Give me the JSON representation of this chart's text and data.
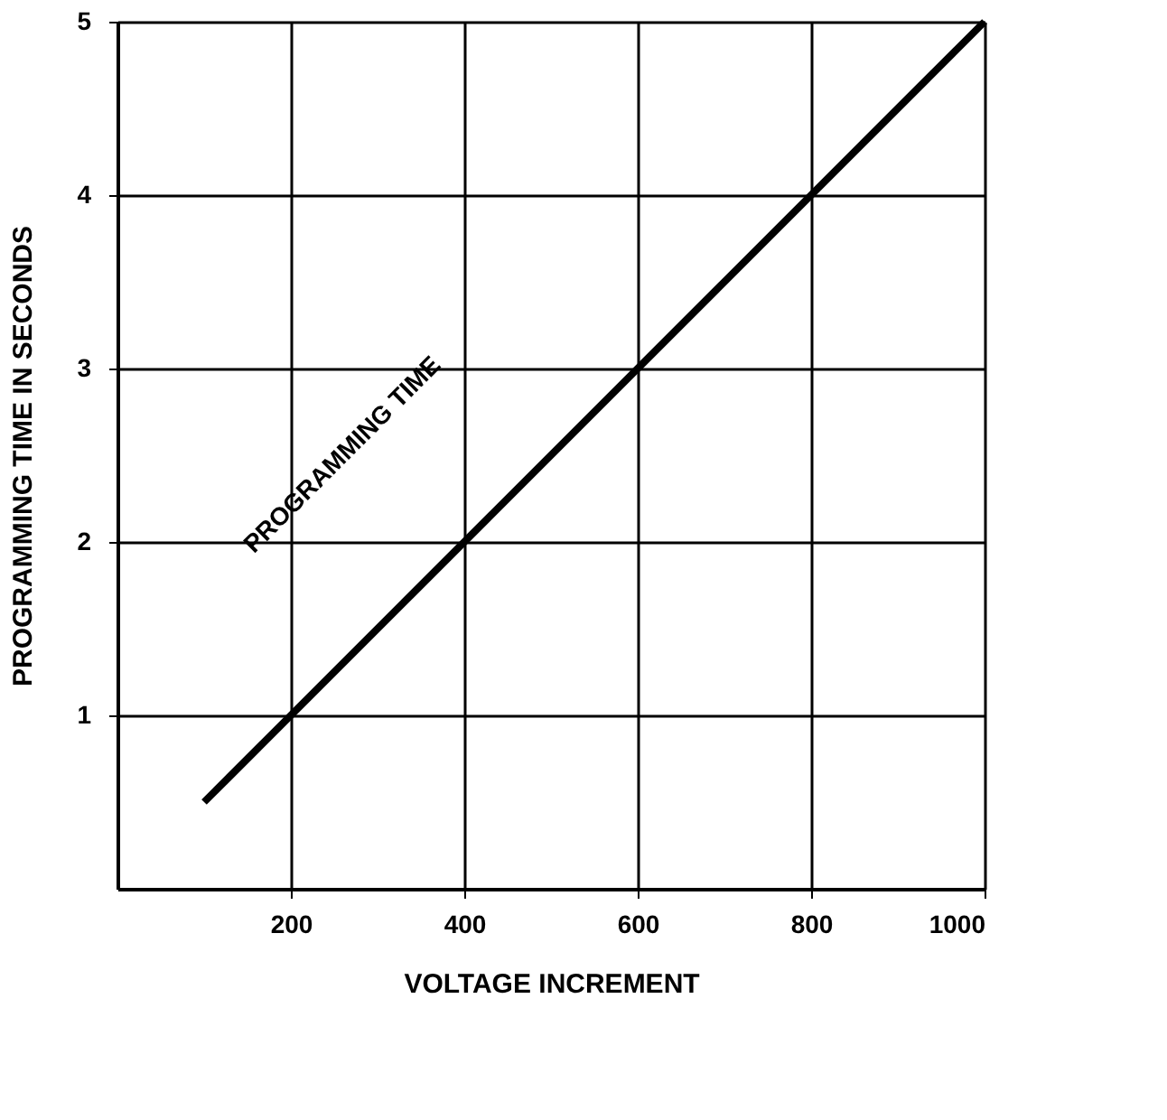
{
  "chart_data": {
    "type": "line",
    "xlabel": "VOLTAGE INCREMENT",
    "ylabel": "PROGRAMMING TIME IN SECONDS",
    "x": [
      100,
      1000
    ],
    "series": [
      {
        "color": "#000000",
        "values": [
          0.5,
          5
        ]
      }
    ],
    "xlim": [
      0,
      1000
    ],
    "xticks": [
      200,
      400,
      600,
      800,
      1000
    ],
    "ylim": [
      0,
      5
    ],
    "yticks": [
      1,
      2,
      3,
      4,
      5
    ],
    "grid": true,
    "marker": "none",
    "line_style": "solid",
    "annotations": [
      "PROGRAMMING TIME"
    ]
  }
}
